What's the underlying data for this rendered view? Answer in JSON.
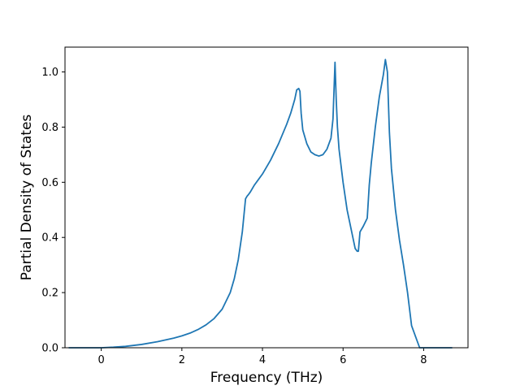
{
  "chart_data": {
    "type": "line",
    "title": "",
    "xlabel": "Frequency (THz)",
    "ylabel": "Partial Density of States",
    "xlim": [
      -0.9,
      9.1
    ],
    "ylim": [
      0.0,
      1.09
    ],
    "xticks": [
      0,
      2,
      4,
      6,
      8
    ],
    "xtick_labels": [
      "0",
      "2",
      "4",
      "6",
      "8"
    ],
    "yticks": [
      0.0,
      0.2,
      0.4,
      0.6,
      0.8,
      1.0
    ],
    "ytick_labels": [
      "0.0",
      "0.2",
      "0.4",
      "0.6",
      "0.8",
      "1.0"
    ],
    "grid": false,
    "legend": "none",
    "color": "#1f77b4",
    "series": [
      {
        "x": [
          -0.8,
          -0.4,
          0.0,
          0.3,
          0.6,
          1.0,
          1.4,
          1.8,
          2.0,
          2.2,
          2.4,
          2.6,
          2.8,
          3.0,
          3.2,
          3.3,
          3.4,
          3.5,
          3.58,
          3.62,
          3.65,
          3.7,
          3.8,
          3.9,
          4.0,
          4.2,
          4.4,
          4.6,
          4.7,
          4.8,
          4.85,
          4.9,
          4.93,
          4.96,
          5.0,
          5.1,
          5.2,
          5.3,
          5.4,
          5.5,
          5.6,
          5.7,
          5.75,
          5.8,
          5.83,
          5.86,
          5.9,
          6.0,
          6.1,
          6.2,
          6.3,
          6.35,
          6.38,
          6.42,
          6.5,
          6.6,
          6.65,
          6.7,
          6.8,
          6.9,
          7.0,
          7.05,
          7.1,
          7.15,
          7.2,
          7.3,
          7.4,
          7.5,
          7.6,
          7.7,
          7.8,
          7.9,
          8.0,
          8.3,
          8.7
        ],
        "y": [
          0.0,
          0.0,
          0.0,
          0.002,
          0.005,
          0.012,
          0.022,
          0.035,
          0.043,
          0.053,
          0.066,
          0.083,
          0.106,
          0.14,
          0.2,
          0.25,
          0.32,
          0.42,
          0.54,
          0.55,
          0.555,
          0.565,
          0.59,
          0.61,
          0.63,
          0.68,
          0.74,
          0.81,
          0.85,
          0.9,
          0.935,
          0.94,
          0.93,
          0.85,
          0.79,
          0.74,
          0.71,
          0.7,
          0.695,
          0.7,
          0.72,
          0.76,
          0.83,
          1.035,
          0.9,
          0.8,
          0.72,
          0.6,
          0.5,
          0.43,
          0.36,
          0.35,
          0.35,
          0.42,
          0.44,
          0.47,
          0.59,
          0.67,
          0.8,
          0.91,
          0.99,
          1.045,
          1.0,
          0.78,
          0.65,
          0.5,
          0.39,
          0.3,
          0.2,
          0.08,
          0.04,
          0.0,
          0.0,
          0.0,
          0.0
        ]
      }
    ]
  }
}
